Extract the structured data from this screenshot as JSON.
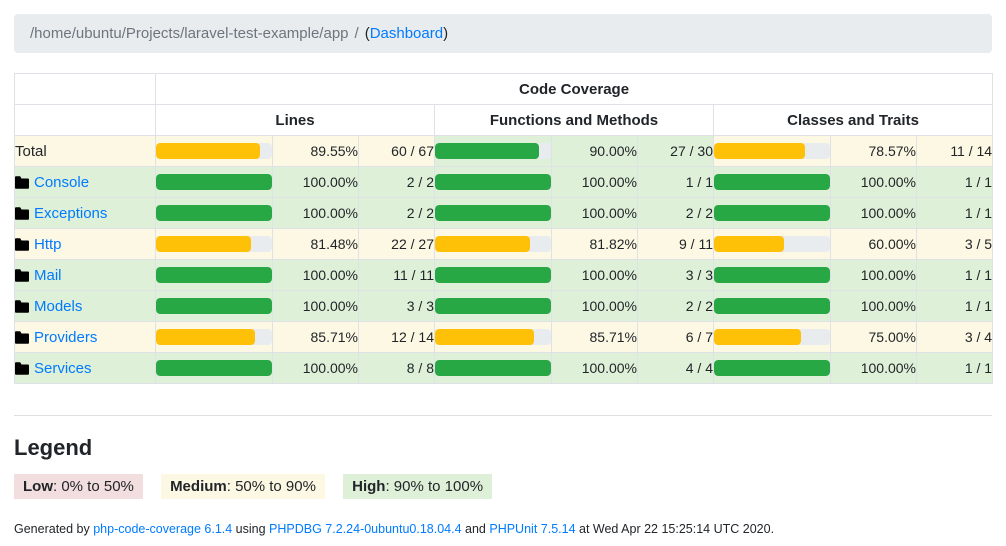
{
  "colors": {
    "success_bar": "#28a745",
    "warning_bar": "#ffc107",
    "success_bg": "#dff0d8",
    "warning_bg": "#fcf8e3",
    "danger_bg": "#f2dede",
    "track": "#e9ecef",
    "link": "#007bff"
  },
  "breadcrumb": {
    "path": "/home/ubuntu/Projects/laravel-test-example/app",
    "separator": "/",
    "paren_open": "(",
    "dashboard_link": "Dashboard",
    "paren_close": ")"
  },
  "table": {
    "header_title": "Code Coverage",
    "groups": [
      "Lines",
      "Functions and Methods",
      "Classes and Traits"
    ],
    "rows": [
      {
        "label": "Total",
        "is_link": false,
        "lines": {
          "pct": 89.55,
          "pct_label": "89.55%",
          "ratio": "60 / 67",
          "level": "warning"
        },
        "methods": {
          "pct": 90.0,
          "pct_label": "90.00%",
          "ratio": "27 / 30",
          "level": "success"
        },
        "classes": {
          "pct": 78.57,
          "pct_label": "78.57%",
          "ratio": "11 / 14",
          "level": "warning"
        }
      },
      {
        "label": "Console",
        "is_link": true,
        "lines": {
          "pct": 100,
          "pct_label": "100.00%",
          "ratio": "2 / 2",
          "level": "success"
        },
        "methods": {
          "pct": 100,
          "pct_label": "100.00%",
          "ratio": "1 / 1",
          "level": "success"
        },
        "classes": {
          "pct": 100,
          "pct_label": "100.00%",
          "ratio": "1 / 1",
          "level": "success"
        }
      },
      {
        "label": "Exceptions",
        "is_link": true,
        "lines": {
          "pct": 100,
          "pct_label": "100.00%",
          "ratio": "2 / 2",
          "level": "success"
        },
        "methods": {
          "pct": 100,
          "pct_label": "100.00%",
          "ratio": "2 / 2",
          "level": "success"
        },
        "classes": {
          "pct": 100,
          "pct_label": "100.00%",
          "ratio": "1 / 1",
          "level": "success"
        }
      },
      {
        "label": "Http",
        "is_link": true,
        "lines": {
          "pct": 81.48,
          "pct_label": "81.48%",
          "ratio": "22 / 27",
          "level": "warning"
        },
        "methods": {
          "pct": 81.82,
          "pct_label": "81.82%",
          "ratio": "9 / 11",
          "level": "warning"
        },
        "classes": {
          "pct": 60.0,
          "pct_label": "60.00%",
          "ratio": "3 / 5",
          "level": "warning"
        }
      },
      {
        "label": "Mail",
        "is_link": true,
        "lines": {
          "pct": 100,
          "pct_label": "100.00%",
          "ratio": "11 / 11",
          "level": "success"
        },
        "methods": {
          "pct": 100,
          "pct_label": "100.00%",
          "ratio": "3 / 3",
          "level": "success"
        },
        "classes": {
          "pct": 100,
          "pct_label": "100.00%",
          "ratio": "1 / 1",
          "level": "success"
        }
      },
      {
        "label": "Models",
        "is_link": true,
        "lines": {
          "pct": 100,
          "pct_label": "100.00%",
          "ratio": "3 / 3",
          "level": "success"
        },
        "methods": {
          "pct": 100,
          "pct_label": "100.00%",
          "ratio": "2 / 2",
          "level": "success"
        },
        "classes": {
          "pct": 100,
          "pct_label": "100.00%",
          "ratio": "1 / 1",
          "level": "success"
        }
      },
      {
        "label": "Providers",
        "is_link": true,
        "lines": {
          "pct": 85.71,
          "pct_label": "85.71%",
          "ratio": "12 / 14",
          "level": "warning"
        },
        "methods": {
          "pct": 85.71,
          "pct_label": "85.71%",
          "ratio": "6 / 7",
          "level": "warning"
        },
        "classes": {
          "pct": 75.0,
          "pct_label": "75.00%",
          "ratio": "3 / 4",
          "level": "warning"
        }
      },
      {
        "label": "Services",
        "is_link": true,
        "lines": {
          "pct": 100,
          "pct_label": "100.00%",
          "ratio": "8 / 8",
          "level": "success"
        },
        "methods": {
          "pct": 100,
          "pct_label": "100.00%",
          "ratio": "4 / 4",
          "level": "success"
        },
        "classes": {
          "pct": 100,
          "pct_label": "100.00%",
          "ratio": "1 / 1",
          "level": "success"
        }
      }
    ]
  },
  "legend": {
    "title": "Legend",
    "items": [
      {
        "name": "Low",
        "range": ": 0% to 50%",
        "level": "danger"
      },
      {
        "name": "Medium",
        "range": ": 50% to 90%",
        "level": "warning"
      },
      {
        "name": "High",
        "range": ": 90% to 100%",
        "level": "success"
      }
    ]
  },
  "footer": {
    "generated_by": "Generated by ",
    "coverage_link": "php-code-coverage 6.1.4",
    "using": " using ",
    "phpdbg_link": "PHPDBG 7.2.24-0ubuntu0.18.04.4",
    "and": " and ",
    "phpunit_link": "PHPUnit 7.5.14",
    "at": " at Wed Apr 22 15:25:14 UTC 2020."
  }
}
